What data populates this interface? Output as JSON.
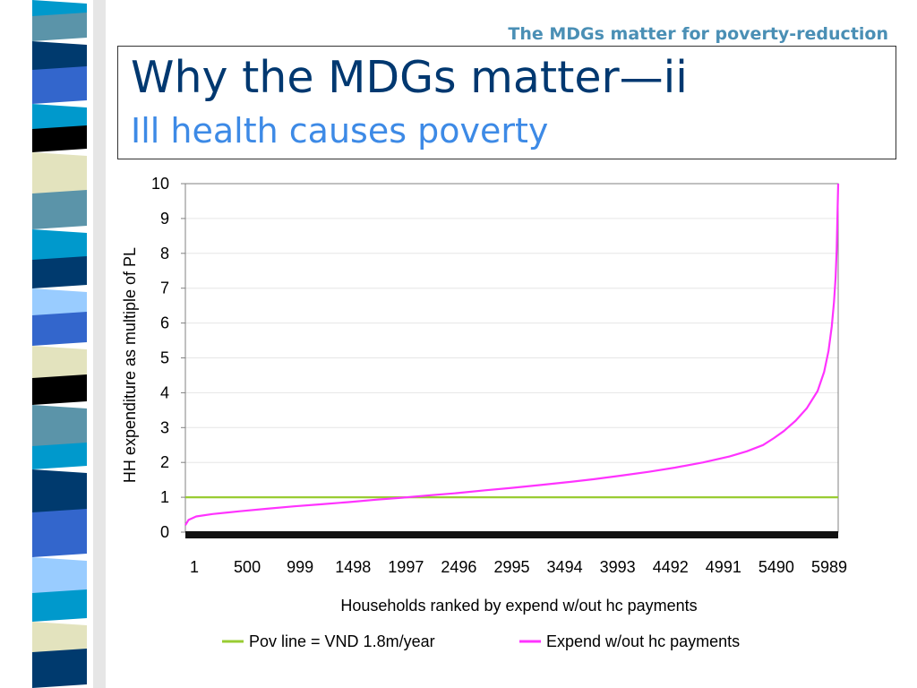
{
  "header": {
    "kicker": "The MDGs matter for poverty-reduction",
    "title": "Why the MDGs matter—ii",
    "subtitle": "Ill health causes poverty"
  },
  "colors": {
    "title": "#003870",
    "subtitle": "#3d8ae6",
    "kicker": "#4a8fb5",
    "pov_line": "#99cc33",
    "expend": "#ff33ff",
    "stripes": [
      "#0099cc",
      "#5b94a9",
      "#003a6e",
      "#3366cc",
      "#000000",
      "#e3e3be",
      "#99ccff"
    ]
  },
  "chart_data": {
    "type": "line",
    "xlabel": "Households ranked by expend w/out hc payments",
    "ylabel": "HH expenditure as multiple of PL",
    "ylim": [
      0,
      10
    ],
    "y_ticks": [
      "0",
      "1",
      "2",
      "3",
      "4",
      "5",
      "6",
      "7",
      "8",
      "9",
      "10"
    ],
    "xlim": [
      1,
      5989
    ],
    "x_ticks": [
      "1",
      "500",
      "999",
      "1498",
      "1997",
      "2496",
      "2995",
      "3494",
      "3993",
      "4492",
      "4991",
      "5490",
      "5989"
    ],
    "grid": true,
    "legend": "bottom",
    "series": [
      {
        "name": "Pov line = VND 1.8m/year",
        "x": [
          1,
          5989
        ],
        "y": [
          1,
          1
        ]
      },
      {
        "name": "Expend w/out hc payments",
        "x": [
          1,
          30,
          100,
          250,
          500,
          750,
          999,
          1250,
          1498,
          1750,
          1997,
          2250,
          2496,
          2750,
          2995,
          3250,
          3494,
          3750,
          3993,
          4250,
          4492,
          4750,
          4991,
          5150,
          5300,
          5400,
          5490,
          5600,
          5700,
          5800,
          5860,
          5900,
          5930,
          5950,
          5965,
          5975,
          5982,
          5989
        ],
        "y": [
          0.2,
          0.35,
          0.45,
          0.52,
          0.6,
          0.67,
          0.74,
          0.8,
          0.86,
          0.93,
          0.99,
          1.06,
          1.12,
          1.2,
          1.27,
          1.35,
          1.43,
          1.52,
          1.62,
          1.73,
          1.85,
          2.0,
          2.17,
          2.32,
          2.5,
          2.7,
          2.9,
          3.2,
          3.55,
          4.05,
          4.6,
          5.2,
          5.9,
          6.6,
          7.3,
          8.1,
          9.0,
          10.0
        ]
      }
    ]
  }
}
